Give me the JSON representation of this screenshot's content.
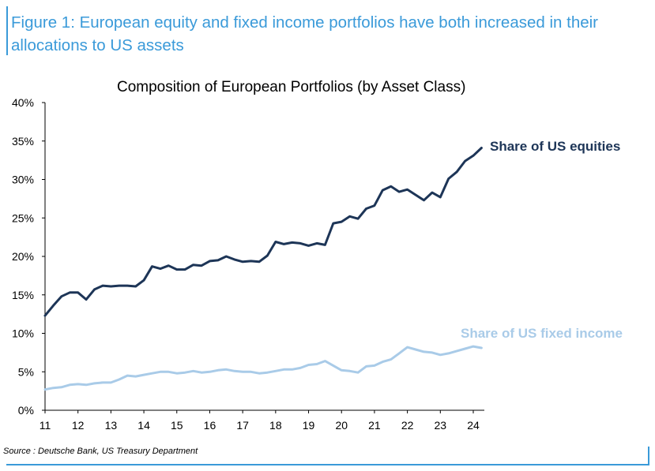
{
  "figure_title": "Figure 1: European equity and fixed income portfolios have both increased in their allocations to US assets",
  "source": "Source : Deutsche Bank, US Treasury Department",
  "colors": {
    "equities": "#1d3557",
    "fixed_income": "#a9cbe8",
    "accent": "#3a9ad9"
  },
  "chart_data": {
    "type": "line",
    "title": "Composition of European Portfolios (by Asset Class)",
    "xlabel": "",
    "ylabel": "",
    "xlim": [
      11,
      24.35
    ],
    "ylim": [
      0,
      40
    ],
    "x_ticks": [
      "11",
      "12",
      "13",
      "14",
      "15",
      "16",
      "17",
      "18",
      "19",
      "20",
      "21",
      "22",
      "23",
      "24"
    ],
    "y_ticks": [
      "0%",
      "5%",
      "10%",
      "15%",
      "20%",
      "25%",
      "30%",
      "35%",
      "40%"
    ],
    "grid": false,
    "series": [
      {
        "name": "Share of US equities",
        "x": [
          11.0,
          11.25,
          11.5,
          11.75,
          12.0,
          12.25,
          12.5,
          12.75,
          13.0,
          13.25,
          13.5,
          13.75,
          14.0,
          14.25,
          14.5,
          14.75,
          15.0,
          15.25,
          15.5,
          15.75,
          16.0,
          16.25,
          16.5,
          16.75,
          17.0,
          17.25,
          17.5,
          17.75,
          18.0,
          18.25,
          18.5,
          18.75,
          19.0,
          19.25,
          19.5,
          19.75,
          20.0,
          20.25,
          20.5,
          20.75,
          21.0,
          21.25,
          21.5,
          21.75,
          22.0,
          22.25,
          22.5,
          22.75,
          23.0,
          23.25,
          23.5,
          23.75,
          24.0,
          24.25
        ],
        "values": [
          12.3,
          13.6,
          14.8,
          15.3,
          15.3,
          14.4,
          15.7,
          16.2,
          16.1,
          16.2,
          16.2,
          16.1,
          16.9,
          18.7,
          18.4,
          18.8,
          18.3,
          18.3,
          18.9,
          18.8,
          19.4,
          19.5,
          20.0,
          19.6,
          19.3,
          19.4,
          19.3,
          20.1,
          21.9,
          21.6,
          21.8,
          21.7,
          21.4,
          21.7,
          21.5,
          24.3,
          24.5,
          25.2,
          24.9,
          26.2,
          26.6,
          28.6,
          29.1,
          28.4,
          28.7,
          28.0,
          27.3,
          28.3,
          27.7,
          30.1,
          31.0,
          32.4,
          33.1,
          34.1
        ]
      },
      {
        "name": "Share of US fixed income",
        "x": [
          11.0,
          11.25,
          11.5,
          11.75,
          12.0,
          12.25,
          12.5,
          12.75,
          13.0,
          13.25,
          13.5,
          13.75,
          14.0,
          14.25,
          14.5,
          14.75,
          15.0,
          15.25,
          15.5,
          15.75,
          16.0,
          16.25,
          16.5,
          16.75,
          17.0,
          17.25,
          17.5,
          17.75,
          18.0,
          18.25,
          18.5,
          18.75,
          19.0,
          19.25,
          19.5,
          19.75,
          20.0,
          20.25,
          20.5,
          20.75,
          21.0,
          21.25,
          21.5,
          21.75,
          22.0,
          22.25,
          22.5,
          22.75,
          23.0,
          23.25,
          23.5,
          23.75,
          24.0,
          24.25
        ],
        "values": [
          2.7,
          2.9,
          3.0,
          3.3,
          3.4,
          3.3,
          3.5,
          3.6,
          3.6,
          4.0,
          4.5,
          4.4,
          4.6,
          4.8,
          5.0,
          5.0,
          4.8,
          4.9,
          5.1,
          4.9,
          5.0,
          5.2,
          5.3,
          5.1,
          5.0,
          5.0,
          4.8,
          4.9,
          5.1,
          5.3,
          5.3,
          5.5,
          5.9,
          6.0,
          6.4,
          5.8,
          5.2,
          5.1,
          4.9,
          5.7,
          5.8,
          6.3,
          6.6,
          7.4,
          8.2,
          7.9,
          7.6,
          7.5,
          7.2,
          7.4,
          7.7,
          8.0,
          8.3,
          8.1
        ]
      }
    ]
  }
}
